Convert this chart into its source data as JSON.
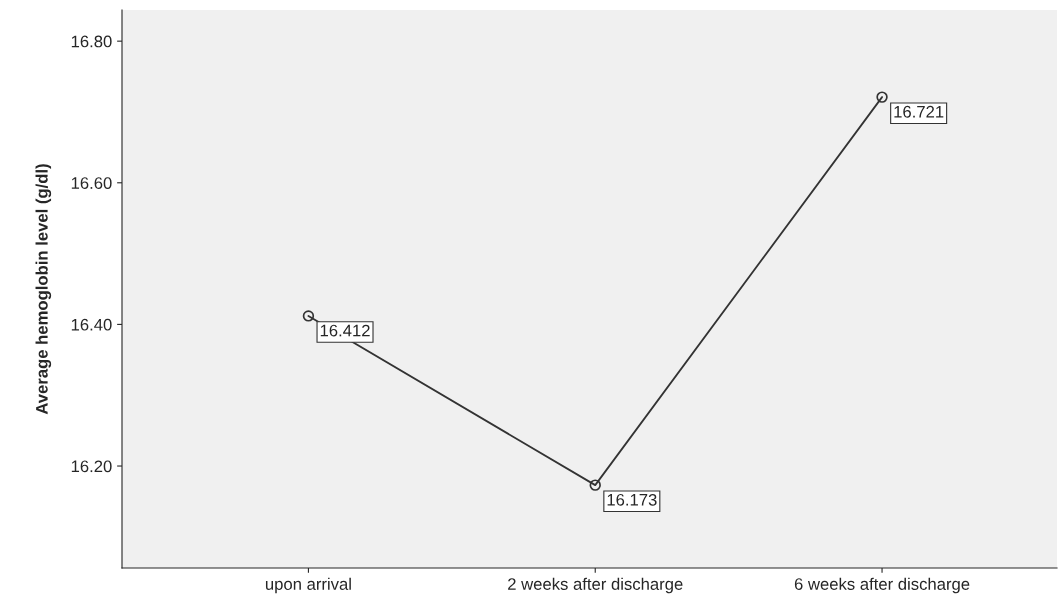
{
  "chart_data": {
    "type": "line",
    "ylabel": "Average hemoglobin level (g/dl)",
    "categories": [
      "upon arrival",
      "2 weeks after discharge",
      "6 weeks after discharge"
    ],
    "series": [
      {
        "color": "#333333",
        "values": [
          16.412,
          16.173,
          16.721
        ]
      }
    ],
    "ylim": [
      16.056,
      16.844
    ],
    "yticks": [
      {
        "value": 16.2,
        "label": "16.20"
      },
      {
        "value": 16.4,
        "label": "16.40"
      },
      {
        "value": 16.6,
        "label": "16.60"
      },
      {
        "value": 16.8,
        "label": "16.80"
      }
    ],
    "marker": "circle",
    "line_style": "solid",
    "grid": false,
    "data_labels": true
  }
}
